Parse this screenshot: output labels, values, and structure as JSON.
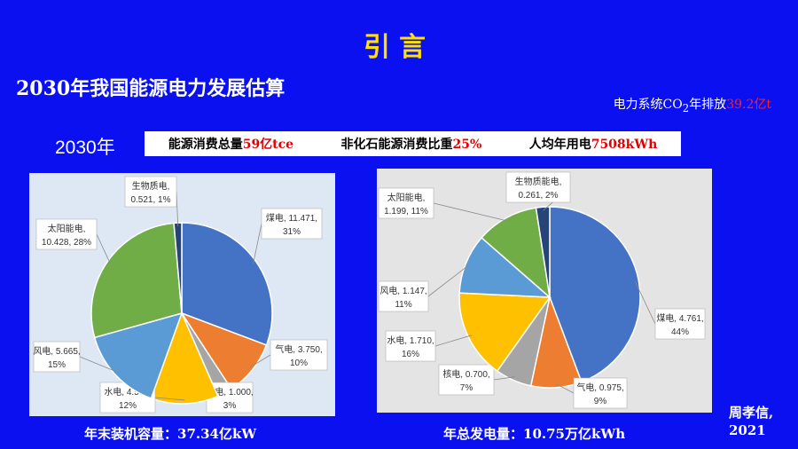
{
  "slide": {
    "title": "引言",
    "subtitle": "2030年我国能源电力发展估算",
    "co2": {
      "prefix": "电力系统CO",
      "sub": "2",
      "middle": "年排放",
      "value": "39.2亿t"
    },
    "year": "2030年",
    "stats": [
      {
        "label": "能源消费总量",
        "value": "59亿tce"
      },
      {
        "label": "非化石能源消费比重",
        "value": "25%"
      },
      {
        "label": "人均年用电",
        "value": "7508kWh"
      }
    ],
    "caption_left": "年末装机容量：37.34亿kW",
    "caption_right": "年总发电量：10.75万亿kWh",
    "author_line1": "周孝信,",
    "author_line2": "2021"
  },
  "chart_data": [
    {
      "type": "pie",
      "title": "",
      "slices": [
        {
          "name": "煤电",
          "value": 11.471,
          "pct": "31%",
          "color": "#4472c4",
          "label_lines": [
            "煤电, 11.471,",
            "31%"
          ]
        },
        {
          "name": "气电",
          "value": 3.75,
          "pct": "10%",
          "color": "#ed7d31",
          "label_lines": [
            "气电, 3.750,",
            "10%"
          ]
        },
        {
          "name": "核电",
          "value": 1.0,
          "pct": "3%",
          "color": "#a5a5a5",
          "label_lines": [
            "核电, 1.000,",
            "3%"
          ]
        },
        {
          "name": "水电",
          "value": 4.5,
          "pct": "12%",
          "color": "#ffc000",
          "label_lines": [
            "水电, 4.500,",
            "12%"
          ]
        },
        {
          "name": "风电",
          "value": 5.665,
          "pct": "15%",
          "color": "#5b9bd5",
          "label_lines": [
            "风电, 5.665,",
            "15%"
          ]
        },
        {
          "name": "太阳能电",
          "value": 10.428,
          "pct": "28%",
          "color": "#70ad47",
          "label_lines": [
            "太阳能电,",
            "10.428, 28%"
          ]
        },
        {
          "name": "生物质电",
          "value": 0.521,
          "pct": "1%",
          "color": "#264478",
          "label_lines": [
            "生物质电,",
            "0.521, 1%"
          ]
        }
      ]
    },
    {
      "type": "pie",
      "title": "",
      "slices": [
        {
          "name": "煤电",
          "value": 4.761,
          "pct": "44%",
          "color": "#4472c4",
          "label_lines": [
            "煤电, 4.761,",
            "44%"
          ]
        },
        {
          "name": "气电",
          "value": 0.975,
          "pct": "9%",
          "color": "#ed7d31",
          "label_lines": [
            "气电, 0.975,",
            "9%"
          ]
        },
        {
          "name": "核电",
          "value": 0.7,
          "pct": "7%",
          "color": "#a5a5a5",
          "label_lines": [
            "核电, 0.700,",
            "7%"
          ]
        },
        {
          "name": "水电",
          "value": 1.71,
          "pct": "16%",
          "color": "#ffc000",
          "label_lines": [
            "水电, 1.710,",
            "16%"
          ]
        },
        {
          "name": "风电",
          "value": 1.147,
          "pct": "11%",
          "color": "#5b9bd5",
          "label_lines": [
            "风电, 1.147,",
            "11%"
          ]
        },
        {
          "name": "太阳能电",
          "value": 1.199,
          "pct": "11%",
          "color": "#70ad47",
          "label_lines": [
            "太阳能电,",
            "1.199, 11%"
          ]
        },
        {
          "name": "生物质能电",
          "value": 0.261,
          "pct": "2%",
          "color": "#264478",
          "label_lines": [
            "生物质能电,",
            "0.261, 2%"
          ]
        }
      ]
    }
  ]
}
